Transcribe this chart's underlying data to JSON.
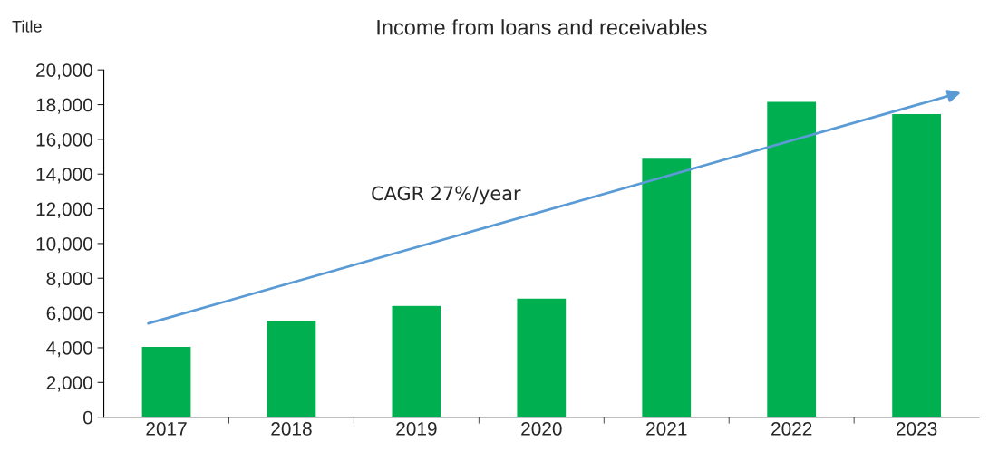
{
  "chart_data": {
    "type": "bar",
    "title": "Income from loans and receivables",
    "ylabel": "Title",
    "categories": [
      "2017",
      "2018",
      "2019",
      "2020",
      "2021",
      "2022",
      "2023"
    ],
    "values": [
      4080,
      5600,
      6440,
      6860,
      14920,
      18200,
      17490
    ],
    "color": "#00b050",
    "ylim": [
      0,
      20000
    ],
    "yticks": [
      0,
      {
        "value": 2000,
        "label": "2,000"
      },
      {
        "value": 4000,
        "label": "4,000"
      },
      {
        "value": 6000,
        "label": "6,000"
      },
      {
        "value": 8000,
        "label": "8,000"
      },
      {
        "value": 10000,
        "label": "10,000"
      },
      {
        "value": 12000,
        "label": "12,000"
      },
      {
        "value": 14000,
        "label": "14,000"
      },
      {
        "value": 16000,
        "label": "16,000"
      },
      {
        "value": 18000,
        "label": "18,000"
      },
      {
        "value": 20000,
        "label": "20,000"
      }
    ],
    "annotations": [
      "CAGR 27%/year"
    ],
    "grid": false,
    "legend": false
  }
}
